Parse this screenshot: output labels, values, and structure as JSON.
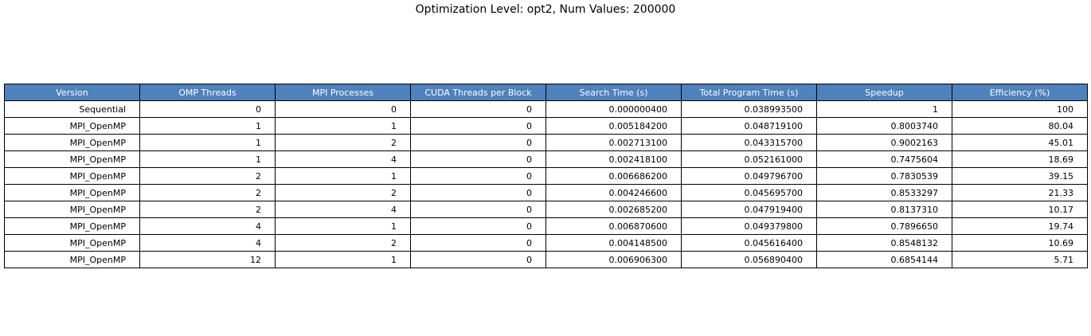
{
  "chart_data": {
    "type": "table",
    "title": "Optimization Level: opt2, Num Values: 200000",
    "columns": [
      "Version",
      "OMP Threads",
      "MPI Processes",
      "CUDA Threads per Block",
      "Search Time (s)",
      "Total Program Time (s)",
      "Speedup",
      "Efficiency (%)"
    ],
    "rows": [
      [
        "Sequential",
        "0",
        "0",
        "0",
        "0.000000400",
        "0.038993500",
        "1",
        "100"
      ],
      [
        "MPI_OpenMP",
        "1",
        "1",
        "0",
        "0.005184200",
        "0.048719100",
        "0.8003740",
        "80.04"
      ],
      [
        "MPI_OpenMP",
        "1",
        "2",
        "0",
        "0.002713100",
        "0.043315700",
        "0.9002163",
        "45.01"
      ],
      [
        "MPI_OpenMP",
        "1",
        "4",
        "0",
        "0.002418100",
        "0.052161000",
        "0.7475604",
        "18.69"
      ],
      [
        "MPI_OpenMP",
        "2",
        "1",
        "0",
        "0.006686200",
        "0.049796700",
        "0.7830539",
        "39.15"
      ],
      [
        "MPI_OpenMP",
        "2",
        "2",
        "0",
        "0.004246600",
        "0.045695700",
        "0.8533297",
        "21.33"
      ],
      [
        "MPI_OpenMP",
        "2",
        "4",
        "0",
        "0.002685200",
        "0.047919400",
        "0.8137310",
        "10.17"
      ],
      [
        "MPI_OpenMP",
        "4",
        "1",
        "0",
        "0.006870600",
        "0.049379800",
        "0.7896650",
        "19.74"
      ],
      [
        "MPI_OpenMP",
        "4",
        "2",
        "0",
        "0.004148500",
        "0.045616400",
        "0.8548132",
        "10.69"
      ],
      [
        "MPI_OpenMP",
        "12",
        "1",
        "0",
        "0.006906300",
        "0.056890400",
        "0.6854144",
        "5.71"
      ]
    ],
    "header_color": "#4f81bd",
    "header_text_color": "#ffffff",
    "cell_color": "#ffffff",
    "border_color": "#000000"
  }
}
